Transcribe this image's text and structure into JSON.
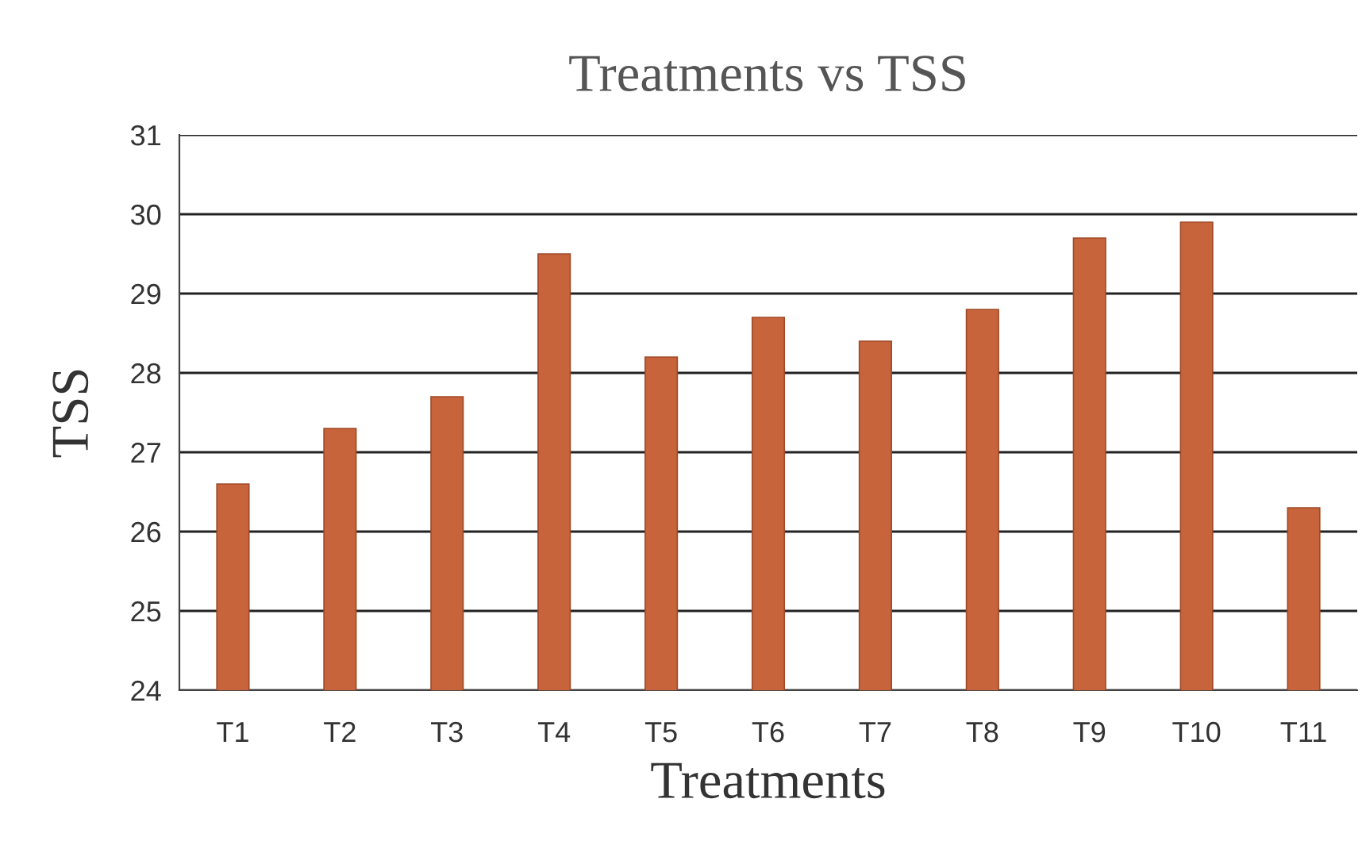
{
  "chart_data": {
    "type": "bar",
    "title": "Treatments vs TSS",
    "xlabel": "Treatments",
    "ylabel": "TSS",
    "categories": [
      "T1",
      "T2",
      "T3",
      "T4",
      "T5",
      "T6",
      "T7",
      "T8",
      "T9",
      "T10",
      "T11"
    ],
    "values": [
      26.6,
      27.3,
      27.7,
      29.5,
      28.2,
      28.7,
      28.4,
      28.8,
      29.7,
      29.9,
      26.3
    ],
    "color": "#c8643c",
    "ylim": [
      24,
      31
    ],
    "yticks": [
      24,
      25,
      26,
      27,
      28,
      29,
      30,
      31
    ],
    "grid": "y",
    "legend": false
  }
}
